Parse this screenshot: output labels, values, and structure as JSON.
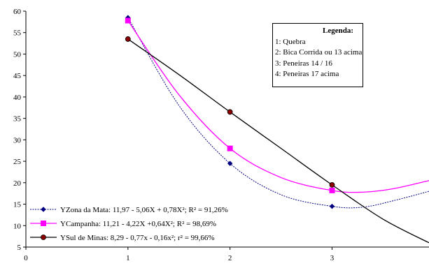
{
  "chart_data": {
    "type": "line",
    "xlim": [
      0,
      3.95
    ],
    "ylim": [
      5,
      60
    ],
    "xticks": [
      0,
      1,
      2,
      3
    ],
    "yticks": [
      5,
      10,
      15,
      20,
      25,
      30,
      35,
      40,
      45,
      50,
      55,
      60
    ],
    "grid": false,
    "legend_position": "bottom-left",
    "series": [
      {
        "name": "YZona da Mata: 11,97 - 5,06X + 0,78X²; R² = 91,26%",
        "color": "#000080",
        "dash": "dotted",
        "marker": "diamond",
        "points": [
          [
            1,
            58.5
          ],
          [
            2,
            24.5
          ],
          [
            3,
            14.5
          ]
        ],
        "curve": [
          [
            1,
            58.5
          ],
          [
            1.5,
            38.0
          ],
          [
            2,
            24.5
          ],
          [
            2.5,
            17.2
          ],
          [
            3,
            14.5
          ],
          [
            3.3,
            14.3
          ],
          [
            3.6,
            15.8
          ],
          [
            3.95,
            18.0
          ]
        ]
      },
      {
        "name": "YCampanha: 11,21 - 4,22X +0,64X²; R² = 98,69%",
        "color": "#ff00ff",
        "dash": "solid",
        "marker": "square",
        "points": [
          [
            1,
            57.8
          ],
          [
            2,
            28.0
          ],
          [
            3,
            18.2
          ]
        ],
        "curve": [
          [
            1,
            57.8
          ],
          [
            1.5,
            40.5
          ],
          [
            2,
            28.0
          ],
          [
            2.5,
            21.2
          ],
          [
            3,
            18.2
          ],
          [
            3.3,
            17.8
          ],
          [
            3.6,
            18.6
          ],
          [
            3.95,
            20.5
          ]
        ]
      },
      {
        "name": "YSul de Minas: 8,29 - 0,77x - 0,16x²; r² = 99,66%",
        "color": "#000000",
        "dash": "solid",
        "marker": "circle",
        "markerFill": "#8b0000",
        "points": [
          [
            1,
            53.5
          ],
          [
            2,
            36.5
          ],
          [
            3,
            19.5
          ]
        ],
        "curve": [
          [
            1,
            53.5
          ],
          [
            1.5,
            45.2
          ],
          [
            2,
            36.5
          ],
          [
            2.5,
            28.0
          ],
          [
            3,
            19.5
          ],
          [
            3.5,
            11.5
          ],
          [
            3.95,
            6.0
          ]
        ]
      }
    ]
  },
  "note": {
    "title": "Legenda:",
    "items": [
      "1: Quebra",
      "2: Bica Corrida ou 13 acima",
      "3: Peneiras 14 / 16",
      "4: Peneiras 17 acima"
    ]
  }
}
